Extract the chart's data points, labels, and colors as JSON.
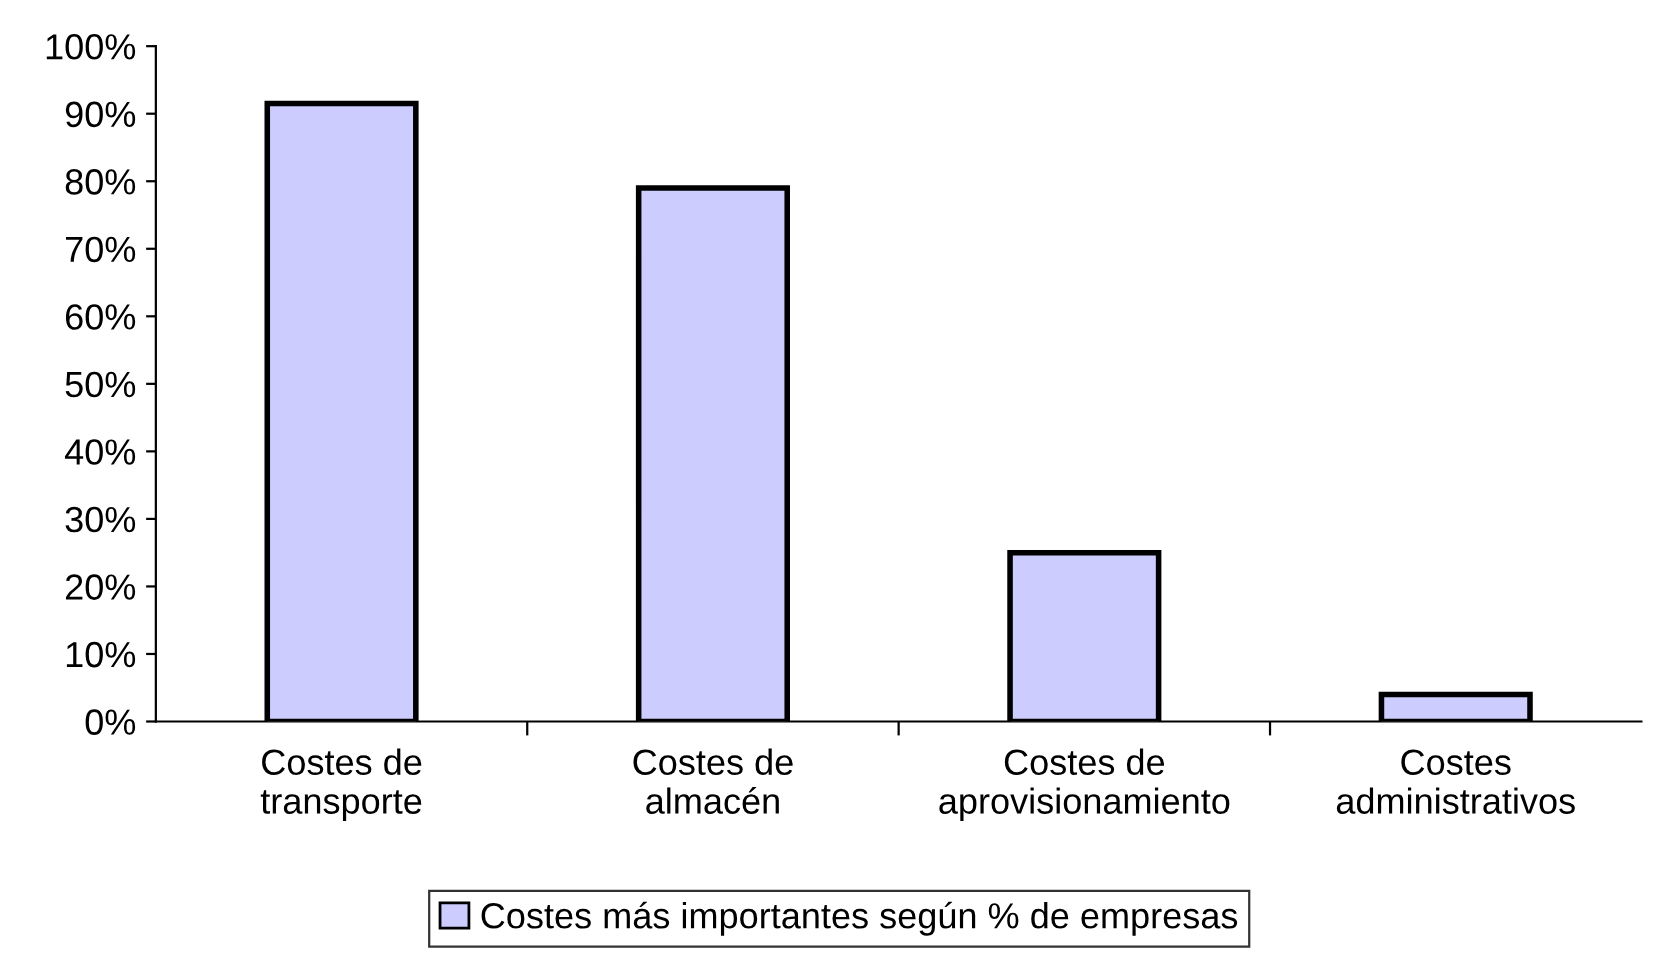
{
  "chart_data": {
    "type": "bar",
    "categories": [
      "Costes de\ntransporte",
      "Costes de\nalmacén",
      "Costes de\naprovisionamiento",
      "Costes\nadministrativos"
    ],
    "series": [
      {
        "name": "Costes más importantes según % de empresas",
        "color": "#ccccff",
        "values": [
          91.5,
          79,
          25,
          4
        ]
      }
    ],
    "ylim": [
      0,
      100
    ],
    "yticks": [
      {
        "value": 0,
        "label": "0%"
      },
      {
        "value": 10,
        "label": "10%"
      },
      {
        "value": 20,
        "label": "20%"
      },
      {
        "value": 30,
        "label": "30%"
      },
      {
        "value": 40,
        "label": "40%"
      },
      {
        "value": 50,
        "label": "50%"
      },
      {
        "value": 60,
        "label": "60%"
      },
      {
        "value": 70,
        "label": "70%"
      },
      {
        "value": 80,
        "label": "80%"
      },
      {
        "value": 90,
        "label": "90%"
      },
      {
        "value": 100,
        "label": "100%"
      }
    ],
    "grid": false,
    "legend": "bottom"
  }
}
